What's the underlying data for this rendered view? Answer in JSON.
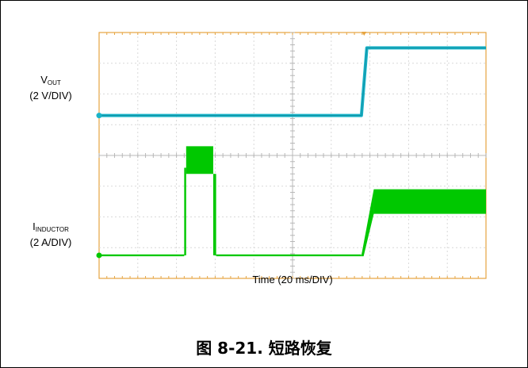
{
  "chart_data": {
    "type": "line",
    "title": "",
    "xlabel": "Time (20 ms/DIV)",
    "x_div": {
      "count": 10,
      "units_per_div": 20,
      "unit": "ms"
    },
    "y_div": {
      "count": 8
    },
    "grid": true,
    "series": [
      {
        "name": "V",
        "name_sub": "OUT",
        "scale": "(2 V/DIV)",
        "color": "#19b3c8",
        "marker_div": 5.3,
        "points": [
          [
            0,
            5.3
          ],
          [
            134,
            5.3
          ],
          [
            138,
            5.32
          ],
          [
            142,
            5.3
          ],
          [
            135.6,
            5.3
          ],
          [
            138.4,
            7.5
          ],
          [
            200,
            7.5
          ]
        ]
      },
      {
        "name": "I",
        "name_sub": "INDUCTOR",
        "scale": "(2 A/DIV)",
        "color": "#00c800",
        "marker_div": 0.75,
        "segments": [
          {
            "t0": 0,
            "t1": 44,
            "level_lo": 0.72,
            "level_hi": 0.78
          },
          {
            "t0": 44,
            "t1": 45,
            "level_lo": 0.75,
            "level_hi": 3.6
          },
          {
            "t0": 45,
            "t1": 59,
            "band_lo": 3.4,
            "band_hi": 4.3
          },
          {
            "t0": 59,
            "t1": 60.5,
            "level_lo": 0.75,
            "level_hi": 3.4
          },
          {
            "t0": 60.5,
            "t1": 135.5,
            "level_lo": 0.72,
            "level_hi": 0.78
          },
          {
            "t0": 135.5,
            "t1": 142,
            "ramp_to_lo": 2.1,
            "ramp_to_hi": 2.9
          },
          {
            "t0": 142,
            "t1": 200,
            "band_lo": 2.1,
            "band_hi": 2.9
          }
        ]
      }
    ]
  },
  "figure": {
    "caption": "图 8-21. 短路恢复"
  }
}
